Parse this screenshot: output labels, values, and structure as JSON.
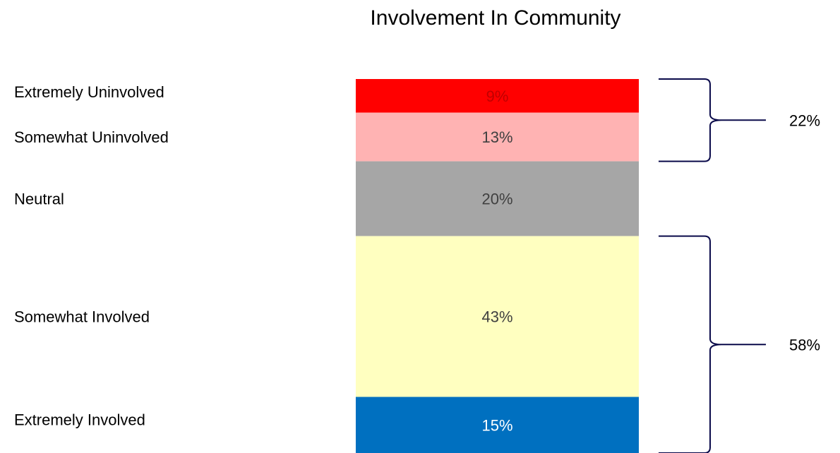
{
  "chart_data": {
    "type": "bar",
    "stacked": true,
    "title": "Involvement In Community",
    "orientation": "vertical-single-stack",
    "unit": "%",
    "segments": [
      {
        "category": "Extremely Uninvolved",
        "value": 9,
        "label": "9%",
        "color": "#ff0000",
        "label_color": "#c00000"
      },
      {
        "category": "Somewhat Uninvolved",
        "value": 13,
        "label": "13%",
        "color": "#ffb3b3",
        "label_color": "#404040"
      },
      {
        "category": "Neutral",
        "value": 20,
        "label": "20%",
        "color": "#a6a6a6",
        "label_color": "#404040"
      },
      {
        "category": "Somewhat Involved",
        "value": 43,
        "label": "43%",
        "color": "#ffffc0",
        "label_color": "#404040"
      },
      {
        "category": "Extremely Involved",
        "value": 15,
        "label": "15%",
        "color": "#0070c0",
        "label_color": "#ffffff"
      }
    ],
    "groups": [
      {
        "label": "22%",
        "members": [
          "Extremely Uninvolved",
          "Somewhat Uninvolved"
        ]
      },
      {
        "label": "58%",
        "members": [
          "Somewhat Involved",
          "Extremely Involved"
        ]
      }
    ]
  }
}
